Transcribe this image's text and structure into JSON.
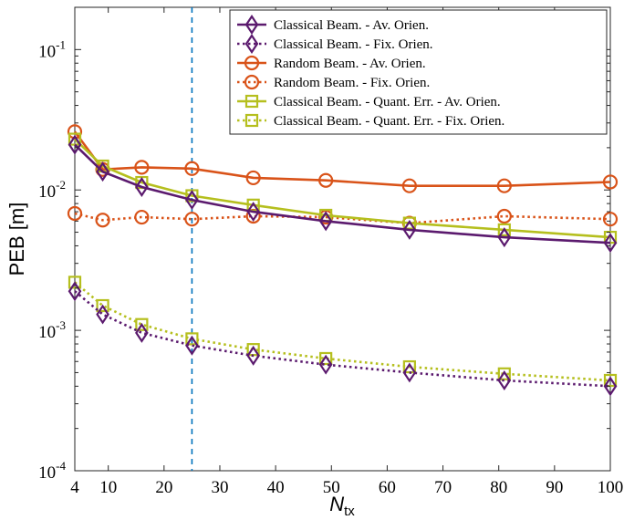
{
  "chart_data": {
    "type": "line",
    "xlabel": "N",
    "xlabel_sub": "tx",
    "ylabel": "PEB [m]",
    "x": [
      4,
      9,
      16,
      25,
      36,
      49,
      64,
      81,
      100
    ],
    "xlim": [
      4,
      100
    ],
    "ylim": [
      0.0001,
      0.2
    ],
    "yscale": "log",
    "xticks": [
      4,
      10,
      20,
      30,
      40,
      50,
      60,
      70,
      80,
      90,
      100
    ],
    "yticks": [
      {
        "value": 0.0001,
        "base": "10",
        "exp": "-4"
      },
      {
        "value": 0.001,
        "base": "10",
        "exp": "-3"
      },
      {
        "value": 0.01,
        "base": "10",
        "exp": "-2"
      },
      {
        "value": 0.1,
        "base": "10",
        "exp": "-1"
      }
    ],
    "vline": {
      "x": 25,
      "color": "#0072bd",
      "style": "dashed"
    },
    "grid": false,
    "legend_position": "top-right",
    "series": [
      {
        "name": "Classical Beam. - Av. Orien.",
        "color": "#5b1a6e",
        "marker": "diamond",
        "line": "solid",
        "values": [
          0.021,
          0.0135,
          0.0105,
          0.0085,
          0.007,
          0.006,
          0.0052,
          0.0046,
          0.0042
        ]
      },
      {
        "name": "Classical Beam. - Fix. Orien.",
        "color": "#5b1a6e",
        "marker": "diamond",
        "line": "dotted",
        "values": [
          0.0019,
          0.0013,
          0.00096,
          0.00078,
          0.00066,
          0.00057,
          0.0005,
          0.00044,
          0.0004
        ]
      },
      {
        "name": "Random Beam. - Av. Orien.",
        "color": "#d95319",
        "marker": "circle",
        "line": "solid",
        "values": [
          0.026,
          0.014,
          0.0145,
          0.0142,
          0.0122,
          0.0117,
          0.0107,
          0.0107,
          0.0114
        ]
      },
      {
        "name": "Random Beam. - Fix. Orien.",
        "color": "#d95319",
        "marker": "circle",
        "line": "dotted",
        "values": [
          0.0068,
          0.0061,
          0.0064,
          0.0062,
          0.0065,
          0.0064,
          0.0058,
          0.0065,
          0.0062
        ]
      },
      {
        "name": "Classical Beam. - Quant. Err. - Av. Orien.",
        "color": "#b5bf1e",
        "marker": "square",
        "line": "solid",
        "values": [
          0.023,
          0.0148,
          0.0113,
          0.0091,
          0.0078,
          0.0066,
          0.0058,
          0.0052,
          0.0046
        ]
      },
      {
        "name": "Classical Beam. - Quant. Err. - Fix. Orien.",
        "color": "#b5bf1e",
        "marker": "square",
        "line": "dotted",
        "values": [
          0.0022,
          0.0015,
          0.0011,
          0.00087,
          0.00073,
          0.00063,
          0.00055,
          0.00049,
          0.00044
        ]
      }
    ]
  }
}
